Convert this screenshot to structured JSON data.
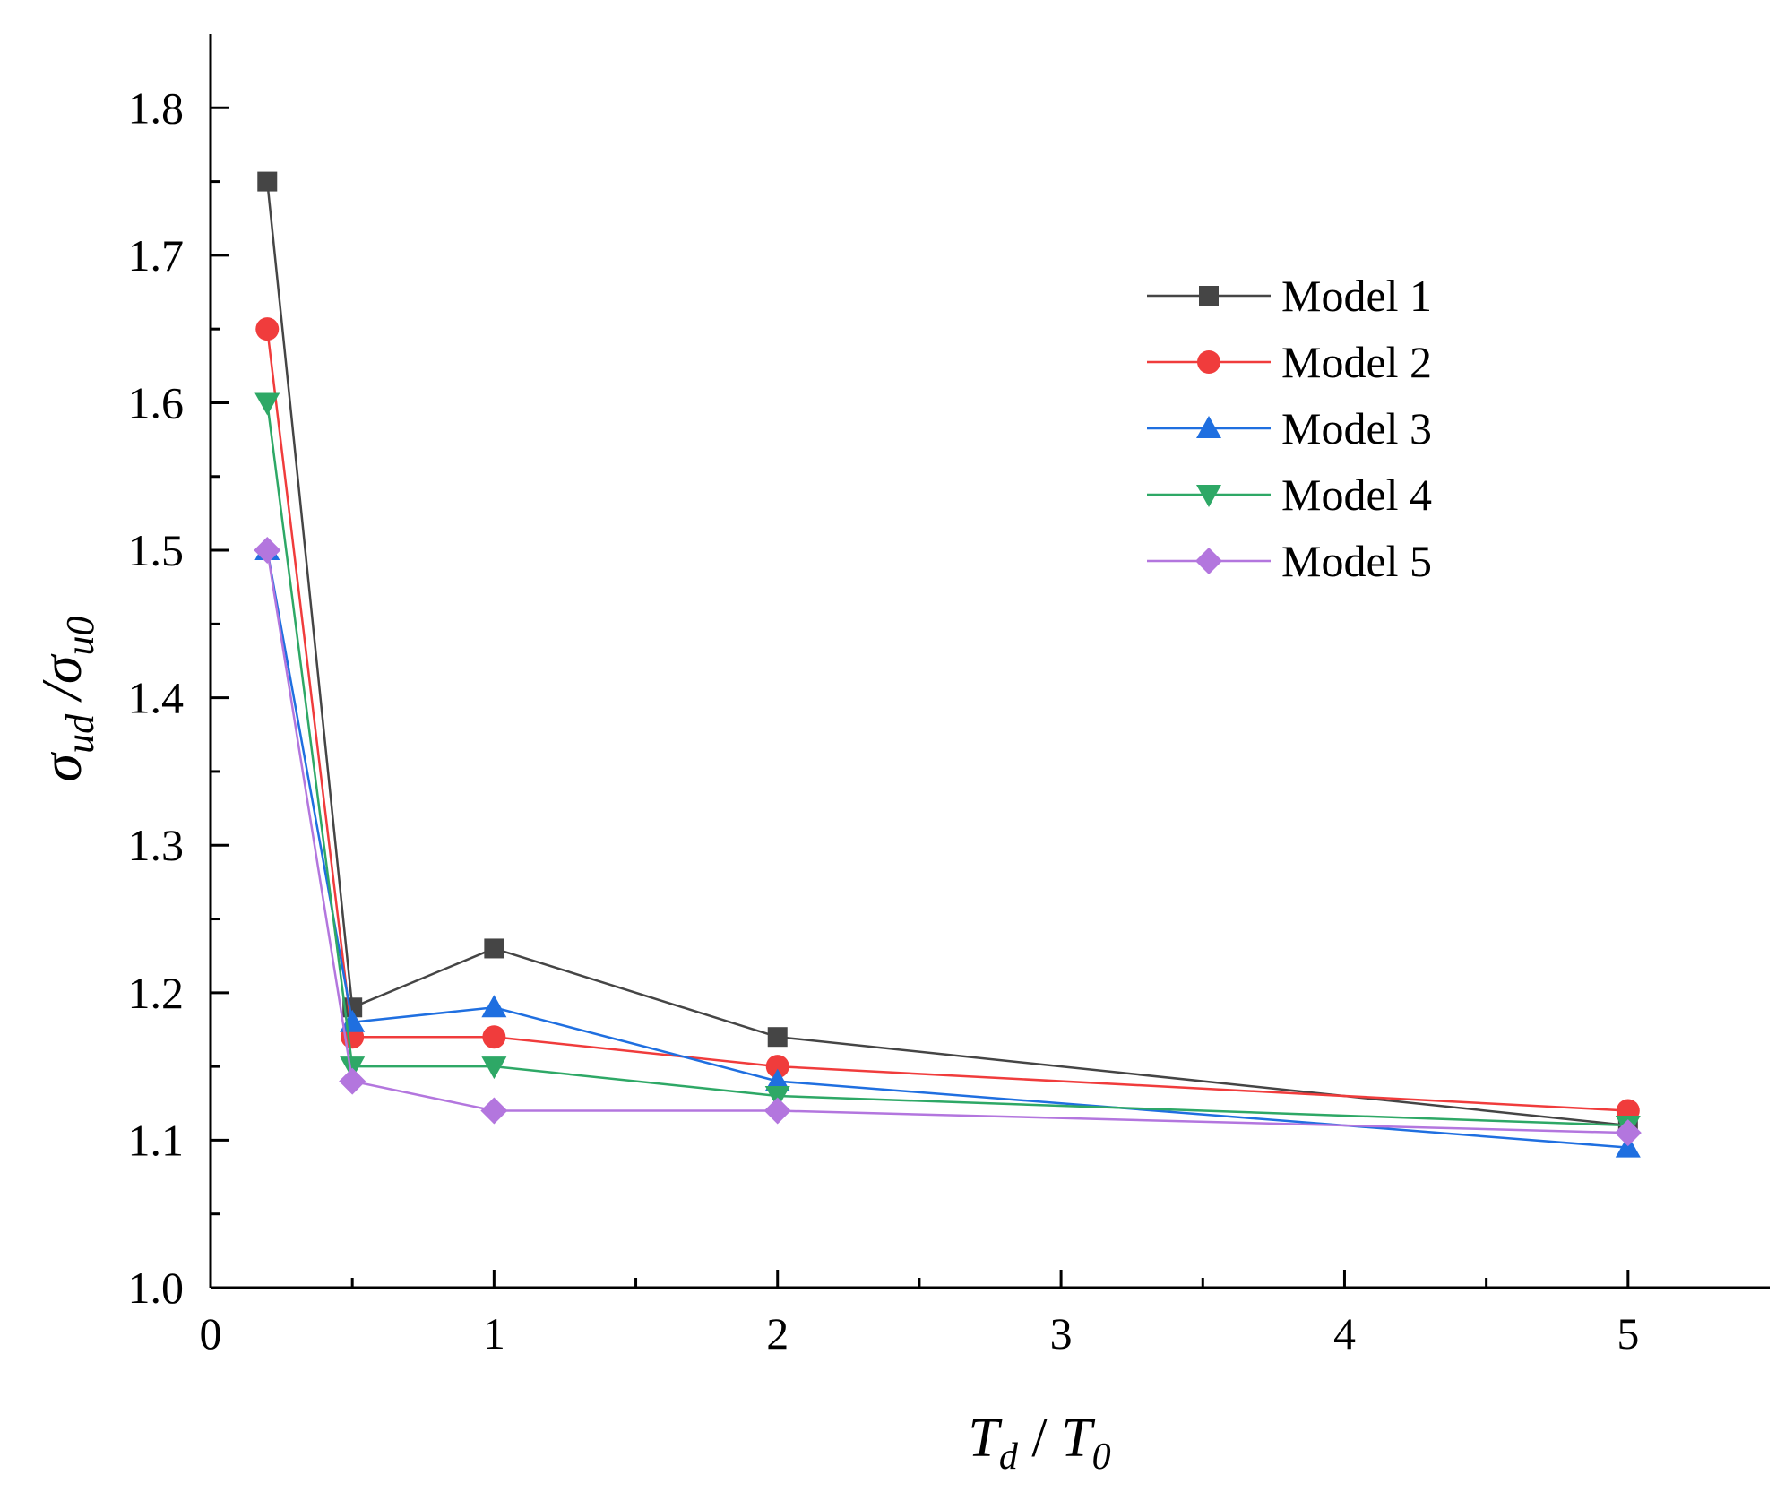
{
  "chart_data": {
    "type": "line",
    "title": "",
    "xlabel": {
      "main": "T",
      "sub": "d",
      "sep": " / ",
      "main2": "T",
      "sub2": "0"
    },
    "ylabel": {
      "main": "σ",
      "sub": "ud",
      "sep": " /",
      "main2": "σ",
      "sub2": "u0"
    },
    "xlim": [
      0,
      5.5
    ],
    "ylim": [
      1.0,
      1.85
    ],
    "x_major_ticks": [
      0,
      1,
      2,
      3,
      4,
      5
    ],
    "x_tick_labels": [
      "0",
      "1",
      "2",
      "3",
      "4",
      "5"
    ],
    "y_major_ticks": [
      1.0,
      1.1,
      1.2,
      1.3,
      1.4,
      1.5,
      1.6,
      1.7,
      1.8
    ],
    "y_tick_labels": [
      "1.0",
      "1.1",
      "1.2",
      "1.3",
      "1.4",
      "1.5",
      "1.6",
      "1.7",
      "1.8"
    ],
    "grid": false,
    "legend_position": "top-right",
    "x": [
      0.2,
      0.5,
      1,
      2,
      5
    ],
    "series": [
      {
        "name": "Model 1",
        "marker": "square",
        "color": "#454545",
        "values": [
          1.75,
          1.19,
          1.23,
          1.17,
          1.11
        ]
      },
      {
        "name": "Model 2",
        "marker": "circle",
        "color": "#f03c3c",
        "values": [
          1.65,
          1.17,
          1.17,
          1.15,
          1.12
        ]
      },
      {
        "name": "Model 3",
        "marker": "triangle-up",
        "color": "#1f6fe0",
        "values": [
          1.5,
          1.18,
          1.19,
          1.14,
          1.095
        ]
      },
      {
        "name": "Model 4",
        "marker": "triangle-down",
        "color": "#2ea866",
        "values": [
          1.6,
          1.15,
          1.15,
          1.13,
          1.11
        ]
      },
      {
        "name": "Model 5",
        "marker": "diamond",
        "color": "#b376de",
        "values": [
          1.5,
          1.14,
          1.12,
          1.12,
          1.105
        ]
      }
    ]
  }
}
